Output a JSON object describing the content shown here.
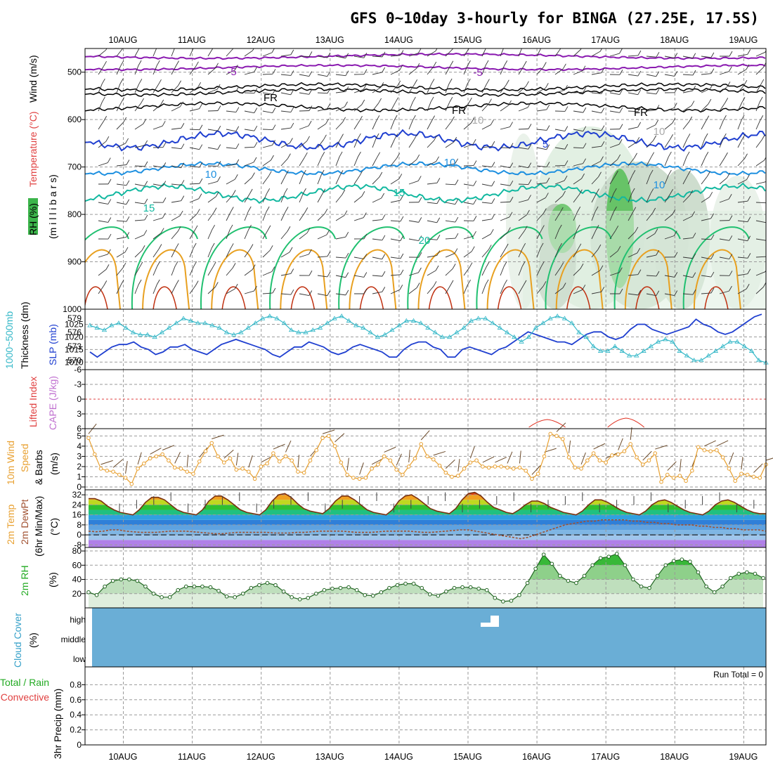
{
  "title": "GFS 0~10day 3-hourly for BINGA (27.25E, 17.5S)",
  "dates": [
    "10AUG",
    "11AUG",
    "12AUG",
    "13AUG",
    "14AUG",
    "15AUG",
    "16AUG",
    "17AUG",
    "18AUG",
    "19AUG"
  ],
  "colors": {
    "purple": "#8a1ab0",
    "black": "#000000",
    "blue": "#1f3fd0",
    "lightblue": "#1e90e0",
    "teal": "#12b8a0",
    "green": "#20c070",
    "orange": "#e8a020",
    "red": "#c03010",
    "slp": "#1f3fd0",
    "thick": "#35b8c8",
    "wind10": "#e8a030",
    "rh": "#22aa22",
    "cloud": "#6aaed6",
    "li": "#e03020",
    "cape": "#c070d0"
  },
  "panels": {
    "upper": {
      "ylabel_rh": "RH (%)",
      "ylabel_temp": "Temperature (°C)",
      "ylabel_wind": "Wind (m/s)",
      "ylabel_mb": "(m i l l i b a r s)",
      "yticks": [
        "500",
        "600",
        "700",
        "800",
        "900",
        "1000"
      ],
      "contour_labels": [
        "-5",
        "-5",
        "FR",
        "FR",
        "FR",
        "5",
        "10",
        "10",
        "10",
        "10",
        "15",
        "15",
        "20",
        "10"
      ]
    },
    "slp": {
      "ylabel_a": "1000~500mb",
      "ylabel_b": "Thickness (dm)",
      "ylabel_c": "SLP (mb)",
      "yticks_left": [
        "579",
        "576",
        "573",
        "570"
      ],
      "yticks_right": [
        "1025",
        "1020",
        "1015",
        "1010"
      ]
    },
    "li": {
      "ylabel_a": "Lifted Index",
      "ylabel_b": "CAPE (J/kg)",
      "yticks": [
        "-6",
        "-3",
        "0",
        "3",
        "6"
      ]
    },
    "wind": {
      "ylabel_a": "10m Wind",
      "ylabel_b": "Speed",
      "ylabel_c": "& Barbs",
      "ylabel_d": "(m/s)",
      "yticks": [
        "5",
        "4",
        "3",
        "2",
        "1",
        "0"
      ]
    },
    "temp": {
      "ylabel_a": "2m Temp",
      "ylabel_b": "2m DewPt",
      "ylabel_c": "(6hr Min/Max)",
      "ylabel_d": "(°C)",
      "yticks": [
        "32",
        "24",
        "16",
        "8",
        "0",
        "-8"
      ]
    },
    "rh": {
      "ylabel_a": "2m RH",
      "ylabel_b": "(%)",
      "yticks": [
        "80",
        "60",
        "40",
        "20"
      ]
    },
    "cloud": {
      "ylabel_a": "Cloud Cover",
      "ylabel_b": "(%)",
      "levels": [
        "high",
        "middle",
        "low"
      ]
    },
    "precip": {
      "ylabel_a": "3hr Precip (mm)",
      "ylabel_b": "Total / Rain",
      "ylabel_c": "Convective",
      "yticks": [
        "0.8",
        "0.6",
        "0.4",
        "0.2",
        "0"
      ],
      "run_total": "Run Total = 0"
    }
  },
  "chart_data": [
    {
      "type": "line",
      "name": "sea-level-pressure",
      "x_range_days": [
        0,
        10
      ],
      "y_unit": "mb",
      "ylim": [
        1007,
        1031
      ],
      "values": [
        1014,
        1012,
        1014,
        1016,
        1017,
        1017,
        1018,
        1016,
        1015,
        1013,
        1014,
        1016,
        1016,
        1017,
        1015,
        1014,
        1013,
        1015,
        1017,
        1018,
        1019,
        1018,
        1017,
        1016,
        1015,
        1013,
        1012,
        1014,
        1016,
        1016,
        1018,
        1017,
        1016,
        1014,
        1013,
        1014,
        1016,
        1017,
        1016,
        1015,
        1014,
        1012,
        1012,
        1015,
        1017,
        1018,
        1018,
        1016,
        1015,
        1012,
        1012,
        1015,
        1016,
        1015,
        1014,
        1013,
        1015,
        1016,
        1018,
        1020,
        1022,
        1021,
        1020,
        1019,
        1018,
        1018,
        1017,
        1019,
        1021,
        1022,
        1022,
        1020,
        1019,
        1020,
        1023,
        1025,
        1025,
        1023,
        1022,
        1021,
        1022,
        1023,
        1024,
        1027,
        1025,
        1024,
        1022,
        1021,
        1022,
        1024,
        1026,
        1028,
        1029
      ]
    },
    {
      "type": "line",
      "name": "thickness-1000-500mb",
      "y_unit": "dm",
      "ylim": [
        568,
        581
      ],
      "values": [
        577.5,
        577,
        576.5,
        577.5,
        578,
        577,
        576,
        575.5,
        575.5,
        575,
        576,
        577,
        578,
        579,
        578.5,
        578,
        578,
        577.5,
        577,
        576,
        575.5,
        576,
        577,
        578,
        579,
        579.5,
        579,
        578,
        576.5,
        576,
        576,
        576.5,
        577,
        578,
        579,
        579.5,
        578.5,
        577.5,
        577,
        576,
        575,
        575.5,
        576.5,
        577.5,
        578.5,
        578.5,
        578,
        577,
        576,
        575,
        575,
        576,
        577,
        578.5,
        579,
        579,
        578,
        577,
        576,
        575,
        574,
        575,
        577,
        578,
        579,
        579.5,
        579,
        578,
        576,
        575,
        573,
        572,
        572,
        573,
        572,
        571,
        571,
        572,
        573,
        574,
        574.5,
        574,
        572,
        571,
        570,
        570,
        571,
        572,
        573,
        574,
        574,
        573,
        572,
        570,
        569.5
      ]
    },
    {
      "type": "line",
      "name": "10m-wind-speed",
      "y_unit": "m/s",
      "ylim": [
        0,
        5.5
      ],
      "values": [
        4.8,
        3.2,
        1.8,
        1.6,
        1.5,
        1.2,
        0.9,
        0.3,
        1.8,
        2.3,
        2.8,
        3.0,
        3.2,
        2.6,
        1.9,
        1.8,
        1.5,
        1.3,
        2.5,
        3.5,
        4.3,
        3.0,
        2.4,
        2.8,
        1.7,
        1.8,
        1.5,
        0.8,
        2.0,
        2.3,
        3.3,
        2.5,
        3.0,
        2.6,
        1.5,
        1.4,
        2.6,
        3.6,
        4.8,
        5.0,
        4.0,
        2.4,
        1.2,
        0.9,
        0.8,
        0.9,
        1.8,
        2.2,
        3.0,
        2.6,
        1.7,
        1.2,
        2.0,
        2.8,
        4.2,
        3.0,
        2.7,
        2.1,
        1.4,
        1.0,
        1.1,
        1.8,
        2.4,
        2.6,
        2.0,
        1.9,
        2.0,
        2.0,
        1.9,
        1.8,
        1.9,
        1.6,
        0.8,
        1.3,
        3.0,
        5.2,
        5.0,
        4.7,
        2.9,
        1.9,
        1.8,
        2.6,
        3.3,
        2.6,
        2.4,
        3.1,
        3.2,
        3.5,
        4.2,
        2.9,
        2.2,
        2.6,
        3.3,
        0.5,
        1.2,
        0.9,
        1.1,
        0.6,
        1.6,
        3.9,
        3.6,
        3.5,
        3.6,
        2.9,
        1.8,
        0.6,
        1.3,
        1.2,
        1.0,
        0.9,
        2.2
      ]
    },
    {
      "type": "area",
      "name": "2m-temperature",
      "y_unit": "°C",
      "ylim": [
        -10,
        36
      ],
      "values": [
        29,
        29,
        27,
        23,
        20,
        18,
        17,
        16,
        20,
        26,
        30,
        30,
        28,
        24,
        20,
        18,
        17,
        16,
        20,
        27,
        31,
        31,
        28,
        24,
        20,
        18,
        17,
        16,
        20,
        27,
        32,
        33,
        30,
        25,
        21,
        19,
        18,
        17,
        21,
        27,
        31,
        31,
        28,
        24,
        20,
        18,
        17,
        16,
        20,
        27,
        31,
        32,
        29,
        25,
        21,
        19,
        18,
        17,
        21,
        28,
        33,
        34,
        31,
        26,
        22,
        20,
        18,
        17,
        20,
        24,
        27,
        27,
        25,
        22,
        20,
        18,
        17,
        16,
        19,
        24,
        28,
        28,
        26,
        23,
        20,
        18,
        17,
        16,
        19,
        24,
        27,
        28,
        26,
        23,
        20,
        18,
        17,
        16,
        19,
        24,
        27,
        28,
        26,
        23,
        20,
        18,
        17,
        17
      ]
    },
    {
      "type": "line",
      "name": "2m-dewpoint",
      "y_unit": "°C",
      "values": [
        3,
        2.5,
        3,
        4,
        4,
        3,
        2.5,
        2,
        2,
        2,
        2.5,
        3,
        3,
        3,
        2.5,
        2,
        1.5,
        1,
        1,
        1.5,
        2,
        2,
        2,
        2,
        2,
        1.5,
        1.5,
        1.5,
        2,
        2,
        2.5,
        3,
        3,
        3,
        3,
        2.5,
        2,
        2,
        2,
        2.5,
        3,
        3,
        3,
        3,
        2.5,
        2,
        2,
        2.5,
        3,
        3.5,
        4,
        4,
        3,
        2,
        1,
        0,
        -1,
        -2,
        -3,
        -2,
        0,
        2,
        4,
        6,
        8,
        9,
        10,
        11,
        11,
        12,
        12,
        12,
        12,
        11,
        11,
        10,
        10,
        9,
        9,
        8,
        8,
        8,
        7,
        7,
        6,
        6,
        5,
        5,
        4,
        4,
        4,
        3
      ]
    },
    {
      "type": "area",
      "name": "2m-relative-humidity",
      "y_unit": "%",
      "ylim": [
        0,
        85
      ],
      "values": [
        22,
        18,
        30,
        38,
        40,
        40,
        38,
        30,
        20,
        15,
        15,
        25,
        30,
        30,
        30,
        29,
        24,
        16,
        15,
        20,
        28,
        32,
        35,
        32,
        23,
        15,
        12,
        14,
        20,
        25,
        27,
        28,
        29,
        25,
        18,
        17,
        22,
        28,
        32,
        34,
        34,
        28,
        19,
        17,
        23,
        28,
        29,
        29,
        27,
        25,
        14,
        9,
        10,
        18,
        35,
        55,
        75,
        62,
        45,
        38,
        35,
        45,
        60,
        70,
        72,
        76,
        60,
        40,
        30,
        28,
        45,
        60,
        66,
        68,
        65,
        50,
        30,
        22,
        30,
        42,
        48,
        50,
        48,
        42
      ]
    },
    {
      "type": "line",
      "name": "lifted-index",
      "y_unit": "",
      "ylim": [
        6,
        -6
      ],
      "values": []
    },
    {
      "type": "bar",
      "name": "3hr-precip",
      "y_unit": "mm",
      "ylim": [
        0,
        1
      ],
      "values": []
    }
  ]
}
